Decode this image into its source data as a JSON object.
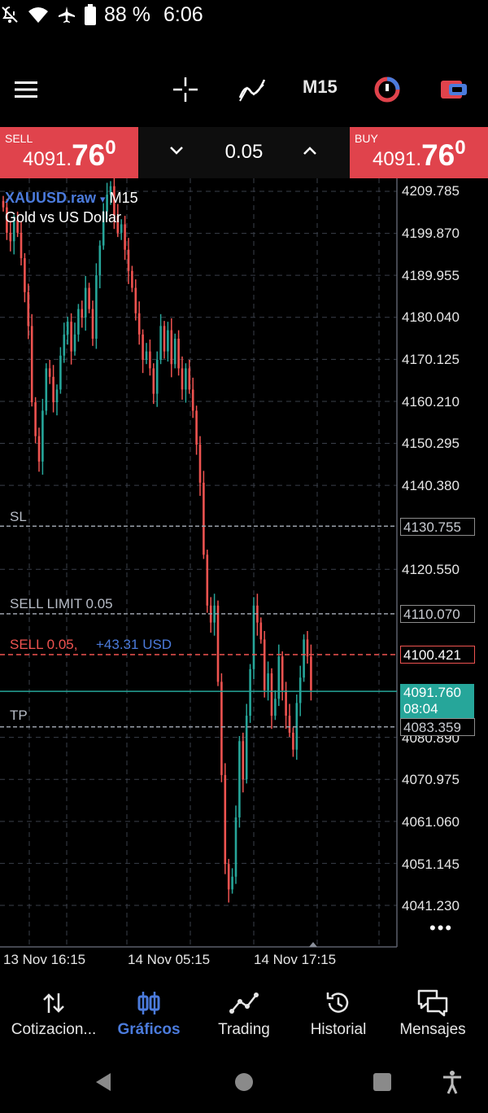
{
  "status_bar": {
    "battery": "88 %",
    "time": "6:06",
    "icons": [
      "notifications-off-icon",
      "wifi-icon",
      "airplane-mode-icon",
      "battery-icon"
    ]
  },
  "toolbar": {
    "icons": [
      "menu-icon",
      "crosshair-icon",
      "indicators-icon",
      "timeframe",
      "chart-object-icon",
      "trade-window-icon"
    ],
    "timeframe": "M15"
  },
  "trade_panel": {
    "sell_label": "SELL",
    "sell_price_a": "4091.",
    "sell_price_b": "76",
    "sell_price_c": "0",
    "buy_label": "BUY",
    "buy_price_a": "4091.",
    "buy_price_b": "76",
    "buy_price_c": "0",
    "volume": "0.05",
    "sell_color": "#e0434c",
    "buy_color": "#e0434c"
  },
  "chart": {
    "symbol": "XAUUSD.raw",
    "symbol_arrow": "▾",
    "timeframe": "M15",
    "description": "Gold vs US Dollar",
    "y_ticks": [
      "4209.785",
      "4199.870",
      "4189.955",
      "4180.040",
      "4170.125",
      "4160.210",
      "4150.295",
      "4140.380",
      "4120.550",
      "4080.890",
      "4070.975",
      "4061.060",
      "4051.145",
      "4041.230"
    ],
    "x_ticks": [
      "13 Nov 16:15",
      "14 Nov 05:15",
      "14 Nov 17:15"
    ],
    "levels": {
      "sl": {
        "label": "SL",
        "price": "4130.755"
      },
      "sell_limit": {
        "label": "SELL LIMIT 0.05",
        "price": "4110.070"
      },
      "sell": {
        "label": "SELL 0.05,",
        "pnl": "+43.31 USD",
        "price": "4100.421"
      },
      "current": {
        "price": "4091.760",
        "countdown": "08:04"
      },
      "tp": {
        "label": "TP",
        "price": "4083.359"
      }
    },
    "more": "•••",
    "colors": {
      "bull": "#26a69a",
      "bear": "#ef5350",
      "grid": "#3a3f4a",
      "accent": "#4b7bdc"
    }
  },
  "chart_data": {
    "type": "candlestick",
    "symbol": "XAUUSD.raw",
    "timeframe": "M15",
    "ylim": [
      4036,
      4214
    ],
    "y_ticks": [
      4209.785,
      4199.87,
      4189.955,
      4180.04,
      4170.125,
      4160.21,
      4150.295,
      4140.38,
      4120.55,
      4080.89,
      4070.975,
      4061.06,
      4051.145,
      4041.23
    ],
    "x_ticks": [
      "13 Nov 16:15",
      "14 Nov 05:15",
      "14 Nov 17:15"
    ],
    "closes": [
      4206,
      4200,
      4198,
      4203,
      4200,
      4194,
      4186,
      4178,
      4160,
      4152,
      4146,
      4158,
      4168,
      4166,
      4160,
      4163,
      4171,
      4176,
      4179,
      4172,
      4176,
      4182,
      4180,
      4187,
      4182,
      4175,
      4190,
      4197,
      4205,
      4209,
      4211,
      4204,
      4200,
      4202,
      4196,
      4191,
      4187,
      4181,
      4176,
      4170,
      4172,
      4168,
      4162,
      4170,
      4178,
      4172,
      4177,
      4169,
      4175,
      4168,
      4163,
      4168,
      4163,
      4158,
      4150,
      4141,
      4124,
      4112,
      4108,
      4112,
      4094,
      4072,
      4051,
      4045,
      4048,
      4062,
      4080,
      4071,
      4086,
      4097,
      4112,
      4108,
      4104,
      4092,
      4096,
      4086,
      4090,
      4100,
      4092,
      4086,
      4082,
      4078,
      4089,
      4095,
      4104,
      4100,
      4092
    ],
    "current_price": 4091.76,
    "levels": {
      "SL": 4130.755,
      "SELL LIMIT 0.05": 4110.07,
      "SELL 0.05": 4100.421,
      "TP": 4083.359
    }
  },
  "bottom_nav": [
    {
      "label": "Cotizacion...",
      "icon": "quotes-icon"
    },
    {
      "label": "Gráficos",
      "icon": "charts-icon",
      "active": true
    },
    {
      "label": "Trading",
      "icon": "trading-icon"
    },
    {
      "label": "Historial",
      "icon": "history-icon"
    },
    {
      "label": "Mensajes",
      "icon": "messages-icon"
    }
  ],
  "system_nav": [
    "back-icon",
    "home-icon",
    "recents-icon",
    "accessibility-icon"
  ]
}
